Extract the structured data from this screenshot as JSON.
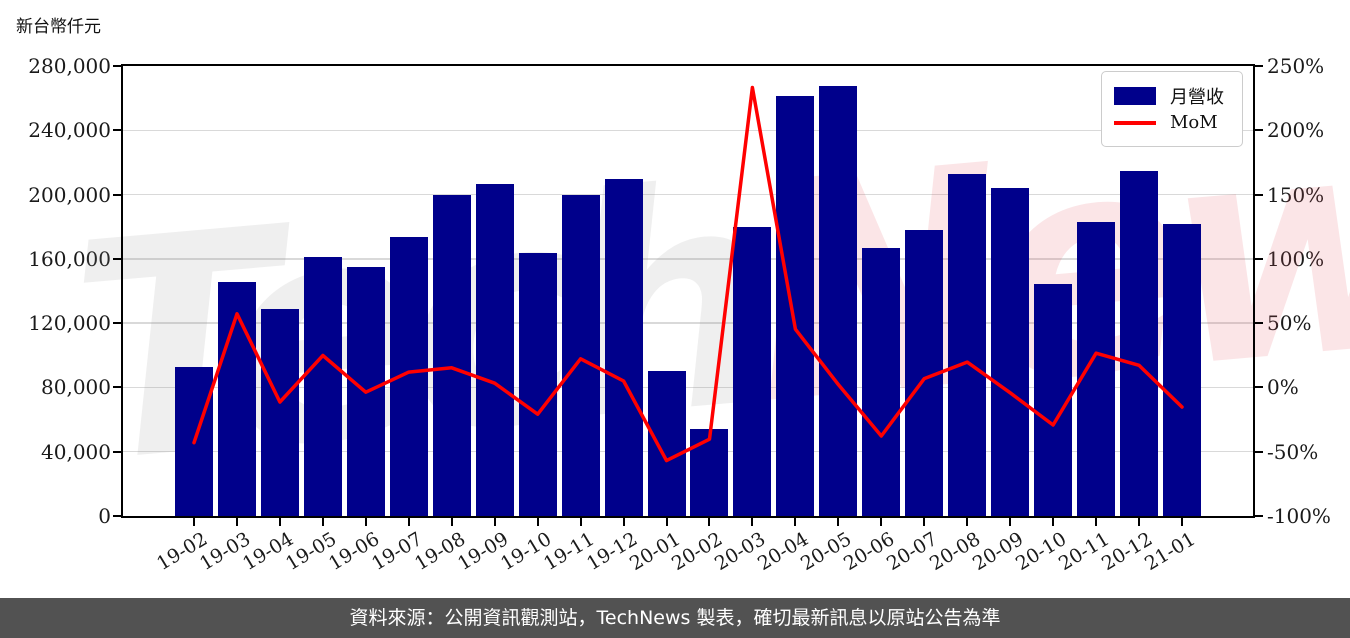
{
  "page": {
    "unit_label": "新台幣仟元",
    "footer_text": "資料來源：公開資訊觀測站，TechNews 製表，確切最新訊息以原站公告為準",
    "watermark": {
      "part1": "Tech",
      "part2": "News"
    }
  },
  "colors": {
    "bar": "#00008B",
    "line": "#FF0000",
    "grid": "#d9d9d9",
    "axis": "#000000",
    "footer_bg": "#525252",
    "footer_text": "#ffffff"
  },
  "chart_data": {
    "type": "bar+line",
    "title": "新台幣仟元",
    "ylabel_left": "新台幣仟元",
    "ylabel_right": "%",
    "grid": true,
    "legend_position": "upper right",
    "categories": [
      "19-02",
      "19-03",
      "19-04",
      "19-05",
      "19-06",
      "19-07",
      "19-08",
      "19-09",
      "19-10",
      "19-11",
      "19-12",
      "20-01",
      "20-02",
      "20-03",
      "20-04",
      "20-05",
      "20-06",
      "20-07",
      "20-08",
      "20-09",
      "20-10",
      "20-11",
      "20-12",
      "21-01"
    ],
    "series": [
      {
        "name": "月營收",
        "type": "bar",
        "axis": "left",
        "color": "#00008B",
        "values": [
          92500,
          145500,
          129000,
          161000,
          155000,
          173500,
          200000,
          206500,
          163500,
          200000,
          210000,
          90500,
          54000,
          180000,
          261500,
          267500,
          166500,
          178000,
          213000,
          204000,
          144500,
          183000,
          214500,
          182000
        ]
      },
      {
        "name": "MoM",
        "type": "line",
        "axis": "right",
        "color": "#FF0000",
        "values_pct": [
          -43.0,
          57.3,
          -11.3,
          24.8,
          -3.7,
          11.9,
          15.3,
          3.3,
          -20.8,
          22.3,
          5.0,
          -56.9,
          -40.3,
          233.3,
          45.3,
          2.3,
          -37.8,
          6.9,
          19.7,
          -4.2,
          -29.2,
          26.6,
          17.2,
          -15.2
        ]
      }
    ],
    "left_axis": {
      "min": 0,
      "max": 280000,
      "ticks": [
        0,
        40000,
        80000,
        120000,
        160000,
        200000,
        240000,
        280000
      ],
      "tick_labels": [
        "0",
        "40,000",
        "80,000",
        "120,000",
        "160,000",
        "200,000",
        "240,000",
        "280,000"
      ]
    },
    "right_axis": {
      "min": -100,
      "max": 250,
      "ticks": [
        -100,
        -50,
        0,
        50,
        100,
        150,
        200,
        250
      ],
      "tick_labels": [
        "-100%",
        "-50%",
        "0%",
        "50%",
        "100%",
        "150%",
        "200%",
        "250%"
      ]
    }
  }
}
